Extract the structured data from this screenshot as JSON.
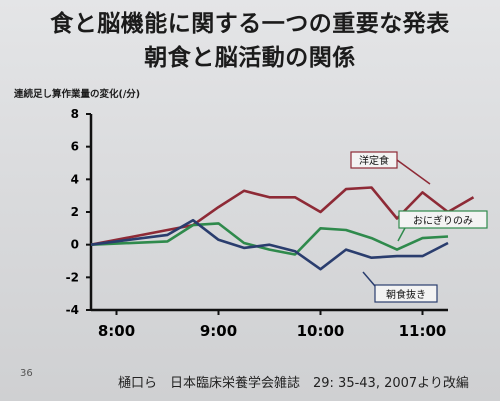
{
  "slide": {
    "title_line1": "食と脳機能に関する一つの重要な発表",
    "title_line2": "朝食と脳活動の関係",
    "slide_number": "36",
    "citation": "樋口ら　日本臨床栄養学会雑誌　29: 35-43, 2007より改編"
  },
  "chart_data": {
    "type": "line",
    "ylabel": "連続足し算作業量の変化(/分)",
    "xlabel": "",
    "xlim": [
      "7:45",
      "11:15"
    ],
    "ylim": [
      -4,
      8
    ],
    "x_ticks": [
      "8:00",
      "9:00",
      "10:00",
      "11:00"
    ],
    "y_ticks": [
      8,
      6,
      4,
      2,
      0,
      -2,
      -4
    ],
    "grid": false,
    "series": [
      {
        "name": "洋定食",
        "color": "#8e2a36",
        "points": [
          [
            "7:45",
            0
          ],
          [
            "8:30",
            0.9
          ],
          [
            "8:45",
            1.2
          ],
          [
            "9:00",
            2.3
          ],
          [
            "9:15",
            3.3
          ],
          [
            "9:30",
            2.9
          ],
          [
            "9:45",
            2.9
          ],
          [
            "10:00",
            2.0
          ],
          [
            "10:15",
            3.4
          ],
          [
            "10:30",
            3.5
          ],
          [
            "10:45",
            1.6
          ],
          [
            "11:00",
            3.2
          ],
          [
            "11:15",
            2.0
          ],
          [
            "11:30",
            2.9
          ]
        ]
      },
      {
        "name": "おにぎりのみ",
        "color": "#2f8a4c",
        "points": [
          [
            "7:45",
            0
          ],
          [
            "8:30",
            0.2
          ],
          [
            "8:45",
            1.2
          ],
          [
            "9:00",
            1.3
          ],
          [
            "9:15",
            0.1
          ],
          [
            "9:30",
            -0.3
          ],
          [
            "9:45",
            -0.6
          ],
          [
            "10:00",
            1.0
          ],
          [
            "10:15",
            0.9
          ],
          [
            "10:30",
            0.4
          ],
          [
            "10:45",
            -0.3
          ],
          [
            "11:00",
            0.4
          ],
          [
            "11:15",
            0.5
          ]
        ]
      },
      {
        "name": "朝食抜き",
        "color": "#2a3d6e",
        "points": [
          [
            "7:45",
            0
          ],
          [
            "8:30",
            0.6
          ],
          [
            "8:45",
            1.5
          ],
          [
            "9:00",
            0.3
          ],
          [
            "9:15",
            -0.2
          ],
          [
            "9:30",
            0.0
          ],
          [
            "9:45",
            -0.4
          ],
          [
            "10:00",
            -1.5
          ],
          [
            "10:15",
            -0.3
          ],
          [
            "10:30",
            -0.8
          ],
          [
            "10:45",
            -0.7
          ],
          [
            "11:00",
            -0.7
          ],
          [
            "11:15",
            0.1
          ]
        ]
      }
    ]
  }
}
